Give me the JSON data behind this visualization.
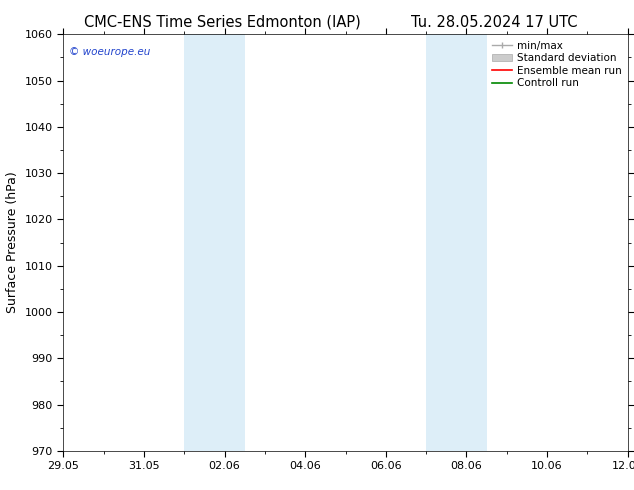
{
  "title_left": "CMC-ENS Time Series Edmonton (IAP)",
  "title_right": "Tu. 28.05.2024 17 UTC",
  "ylabel": "Surface Pressure (hPa)",
  "ylim": [
    970,
    1060
  ],
  "yticks": [
    970,
    980,
    990,
    1000,
    1010,
    1020,
    1030,
    1040,
    1050,
    1060
  ],
  "xtick_positions": [
    0,
    2,
    4,
    6,
    8,
    10,
    12,
    14
  ],
  "xtick_labels": [
    "29.05",
    "31.05",
    "02.06",
    "04.06",
    "06.06",
    "08.06",
    "10.06",
    "12.06"
  ],
  "xlim_start": 0,
  "xlim_end": 14,
  "shaded_bands": [
    {
      "xstart": 3.0,
      "xend": 3.75
    },
    {
      "xstart": 3.75,
      "xend": 4.5
    },
    {
      "xstart": 9.0,
      "xend": 9.75
    },
    {
      "xstart": 9.75,
      "xend": 10.5
    }
  ],
  "shaded_color": "#ddeef8",
  "background_color": "#ffffff",
  "watermark": "© woeurope.eu",
  "legend_entries": [
    {
      "label": "min/max",
      "color": "#aaaaaa"
    },
    {
      "label": "Standard deviation",
      "color": "#cccccc"
    },
    {
      "label": "Ensemble mean run",
      "color": "#ff0000"
    },
    {
      "label": "Controll run",
      "color": "#008800"
    }
  ],
  "title_fontsize": 10.5,
  "ylabel_fontsize": 9,
  "tick_fontsize": 8,
  "legend_fontsize": 7.5
}
